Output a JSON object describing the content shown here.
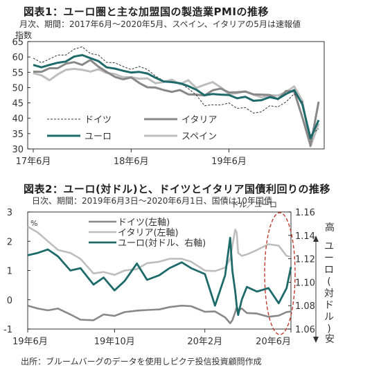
{
  "chart1": {
    "title": "図表1：ユーロ圏と主な加盟国の製造業PMIの推移",
    "subtitle": "月次、期間：2017年6月～2020年5月、スペイン、イタリアの5月は速報値",
    "unit": "指数",
    "yticks": [
      "65",
      "60",
      "55",
      "50",
      "45",
      "40",
      "35",
      "30"
    ],
    "xticks": [
      "17年6月",
      "18年6月",
      "19年6月"
    ],
    "legend": [
      "ドイツ",
      "イタリア",
      "ユーロ",
      "スペイン"
    ]
  },
  "chart2": {
    "title": "図表2：ユーロ(対ドル)と、ドイツとイタリア国債利回りの推移",
    "subtitle": "日次、期間：2019年6月3日～2020年6月1日、国債は10年国債",
    "left_unit": "%",
    "right_unit": "ドル／ユーロ",
    "left_ticks": [
      "3",
      "2",
      "1",
      "0",
      "-1"
    ],
    "right_ticks": [
      "1.16",
      "1.14",
      "1.12",
      "1.10",
      "1.08",
      "1.06"
    ],
    "xticks": [
      "19年6月",
      "19年10月",
      "20年2月",
      "20年6月"
    ],
    "legend": [
      "ドイツ(左軸)",
      "イタリア(左軸)",
      "ユーロ(対ドル、右軸)"
    ],
    "arrow_high": "高",
    "arrow_mid": "ユーロ(対ドル)",
    "arrow_low": "安"
  },
  "source": "出所：ブルームバーグのデータを使用しピクテ投信投資顧問作成",
  "colors": {
    "germany": "#333333",
    "italy": "#888888",
    "euro": "#1e6a6a",
    "spain": "#bdbdbd",
    "accent": "#c0392b"
  },
  "chart_data": [
    {
      "type": "line",
      "title": "図表1：ユーロ圏と主な加盟国の製造業PMIの推移",
      "ylabel": "指数",
      "ylim": [
        30,
        65
      ],
      "x_start": "2017-06",
      "x_end": "2020-05",
      "x": [
        "2017-06",
        "2017-07",
        "2017-08",
        "2017-09",
        "2017-10",
        "2017-11",
        "2017-12",
        "2018-01",
        "2018-02",
        "2018-03",
        "2018-04",
        "2018-05",
        "2018-06",
        "2018-07",
        "2018-08",
        "2018-09",
        "2018-10",
        "2018-11",
        "2018-12",
        "2019-01",
        "2019-02",
        "2019-03",
        "2019-04",
        "2019-05",
        "2019-06",
        "2019-07",
        "2019-08",
        "2019-09",
        "2019-10",
        "2019-11",
        "2019-12",
        "2020-01",
        "2020-02",
        "2020-03",
        "2020-04",
        "2020-05"
      ],
      "series": [
        {
          "name": "ドイツ",
          "values": [
            59.6,
            58.1,
            59.3,
            60.6,
            60.6,
            62.5,
            63.3,
            61.1,
            60.6,
            58.2,
            58.1,
            56.9,
            55.9,
            56.9,
            55.9,
            53.7,
            52.2,
            51.8,
            51.5,
            49.7,
            47.6,
            44.1,
            44.4,
            44.3,
            45.0,
            43.2,
            43.5,
            41.7,
            42.1,
            44.1,
            43.7,
            45.3,
            48.0,
            45.4,
            34.5,
            36.6
          ]
        },
        {
          "name": "イタリア",
          "values": [
            55.2,
            55.1,
            56.3,
            56.3,
            57.8,
            58.3,
            57.4,
            59.0,
            56.8,
            55.1,
            53.5,
            52.7,
            53.3,
            51.5,
            50.1,
            50.0,
            49.2,
            48.6,
            49.2,
            47.8,
            47.7,
            47.4,
            49.1,
            49.7,
            48.4,
            48.5,
            48.7,
            47.8,
            47.7,
            47.6,
            46.2,
            48.9,
            48.7,
            40.3,
            31.1,
            45.4
          ]
        },
        {
          "name": "ユーロ",
          "values": [
            57.4,
            56.6,
            57.4,
            58.1,
            58.5,
            60.1,
            60.6,
            59.6,
            58.6,
            56.6,
            56.2,
            55.5,
            54.9,
            55.1,
            54.6,
            53.2,
            52.0,
            51.8,
            51.4,
            50.5,
            49.3,
            47.5,
            47.9,
            47.7,
            47.6,
            46.5,
            47.0,
            45.7,
            45.9,
            46.9,
            46.3,
            47.9,
            49.2,
            44.5,
            33.4,
            39.4
          ]
        },
        {
          "name": "スペイン",
          "values": [
            54.7,
            54.0,
            52.4,
            54.3,
            55.8,
            56.1,
            55.8,
            55.2,
            56.0,
            54.8,
            54.4,
            53.4,
            53.4,
            52.9,
            53.0,
            51.4,
            51.8,
            52.6,
            51.1,
            52.4,
            49.9,
            50.9,
            51.8,
            50.1,
            47.9,
            48.2,
            48.8,
            47.7,
            46.8,
            47.5,
            47.4,
            48.5,
            50.4,
            45.7,
            30.8,
            38.3
          ]
        }
      ]
    },
    {
      "type": "line",
      "title": "図表2：ユーロ(対ドル)と、ドイツとイタリア国債利回りの推移",
      "ylabel": "%",
      "ylim": [
        -1,
        3
      ],
      "y2label": "ドル／ユーロ",
      "y2lim": [
        1.06,
        1.16
      ],
      "x": [
        "2019-06-03",
        "2019-06-17",
        "2019-07-01",
        "2019-07-15",
        "2019-08-01",
        "2019-08-15",
        "2019-09-02",
        "2019-09-16",
        "2019-10-01",
        "2019-10-15",
        "2019-11-01",
        "2019-11-15",
        "2019-12-02",
        "2019-12-16",
        "2020-01-02",
        "2020-01-15",
        "2020-02-03",
        "2020-02-17",
        "2020-03-02",
        "2020-03-09",
        "2020-03-12",
        "2020-03-16",
        "2020-03-18",
        "2020-03-20",
        "2020-03-25",
        "2020-04-01",
        "2020-04-15",
        "2020-05-01",
        "2020-05-15",
        "2020-05-26",
        "2020-06-01"
      ],
      "series": [
        {
          "name": "ドイツ(左軸)",
          "axis": "left",
          "values": [
            -0.2,
            -0.3,
            -0.36,
            -0.3,
            -0.5,
            -0.68,
            -0.7,
            -0.5,
            -0.55,
            -0.42,
            -0.37,
            -0.35,
            -0.33,
            -0.25,
            -0.2,
            -0.22,
            -0.41,
            -0.4,
            -0.6,
            -0.8,
            -0.7,
            -0.42,
            -0.25,
            -0.35,
            -0.3,
            -0.45,
            -0.47,
            -0.58,
            -0.54,
            -0.42,
            -0.4
          ]
        },
        {
          "name": "イタリア(左軸)",
          "axis": "left",
          "values": [
            2.5,
            2.3,
            2.0,
            1.7,
            1.6,
            1.4,
            0.9,
            0.95,
            0.85,
            1.0,
            1.05,
            1.25,
            1.3,
            1.4,
            1.4,
            1.3,
            1.0,
            0.98,
            1.1,
            1.4,
            1.85,
            2.4,
            2.3,
            1.6,
            1.5,
            1.55,
            1.7,
            1.9,
            1.85,
            1.5,
            1.47
          ]
        },
        {
          "name": "ユーロ(対ドル、右軸)",
          "axis": "right",
          "values": [
            1.123,
            1.125,
            1.128,
            1.122,
            1.11,
            1.112,
            1.098,
            1.104,
            1.093,
            1.101,
            1.116,
            1.102,
            1.106,
            1.112,
            1.117,
            1.112,
            1.107,
            1.08,
            1.106,
            1.138,
            1.11,
            1.092,
            1.08,
            1.072,
            1.085,
            1.096,
            1.092,
            1.095,
            1.082,
            1.095,
            1.113
          ]
        }
      ]
    }
  ]
}
